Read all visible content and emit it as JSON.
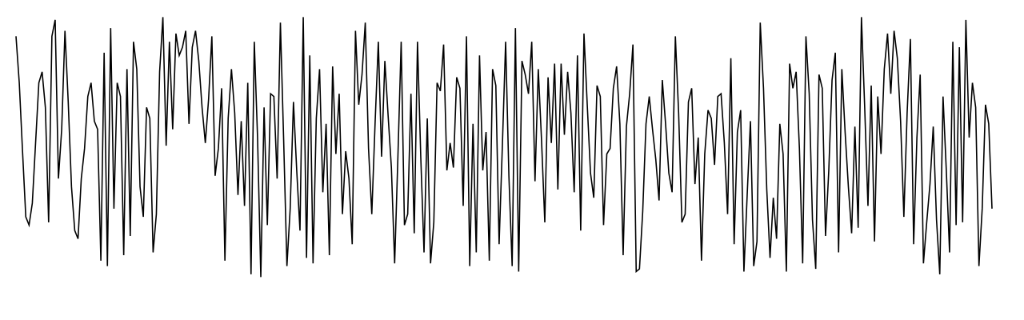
{
  "chart_data": {
    "type": "line",
    "title": "",
    "xlabel": "",
    "ylabel": "",
    "grid": false,
    "legend": "none",
    "axes_visible": false,
    "xlim": [
      0,
      299
    ],
    "ylim": [
      0,
      1
    ],
    "series": [
      {
        "color": "#000000",
        "values": [
          0.92,
          0.75,
          0.5,
          0.26,
          0.23,
          0.31,
          0.53,
          0.75,
          0.79,
          0.66,
          0.24,
          0.92,
          0.98,
          0.4,
          0.58,
          0.94,
          0.68,
          0.37,
          0.21,
          0.18,
          0.4,
          0.51,
          0.7,
          0.75,
          0.61,
          0.58,
          0.1,
          0.86,
          0.08,
          0.95,
          0.29,
          0.75,
          0.7,
          0.12,
          0.8,
          0.19,
          0.9,
          0.8,
          0.37,
          0.26,
          0.66,
          0.62,
          0.13,
          0.27,
          0.79,
          0.99,
          0.52,
          0.9,
          0.58,
          0.93,
          0.85,
          0.88,
          0.94,
          0.6,
          0.88,
          0.94,
          0.83,
          0.66,
          0.53,
          0.69,
          0.92,
          0.41,
          0.51,
          0.73,
          0.1,
          0.62,
          0.8,
          0.64,
          0.34,
          0.61,
          0.3,
          0.75,
          0.05,
          0.9,
          0.55,
          0.04,
          0.66,
          0.23,
          0.71,
          0.7,
          0.4,
          0.97,
          0.54,
          0.08,
          0.29,
          0.68,
          0.43,
          0.21,
          0.99,
          0.11,
          0.85,
          0.09,
          0.62,
          0.8,
          0.35,
          0.6,
          0.12,
          0.81,
          0.49,
          0.71,
          0.27,
          0.5,
          0.4,
          0.16,
          0.94,
          0.67,
          0.78,
          0.97,
          0.51,
          0.27,
          0.6,
          0.9,
          0.48,
          0.83,
          0.63,
          0.44,
          0.09,
          0.48,
          0.9,
          0.23,
          0.27,
          0.71,
          0.2,
          0.9,
          0.48,
          0.13,
          0.62,
          0.09,
          0.24,
          0.75,
          0.72,
          0.89,
          0.43,
          0.53,
          0.44,
          0.77,
          0.73,
          0.3,
          0.92,
          0.08,
          0.6,
          0.13,
          0.85,
          0.43,
          0.57,
          0.1,
          0.8,
          0.74,
          0.16,
          0.52,
          0.9,
          0.41,
          0.08,
          0.95,
          0.06,
          0.83,
          0.78,
          0.71,
          0.9,
          0.39,
          0.8,
          0.54,
          0.24,
          0.77,
          0.53,
          0.82,
          0.36,
          0.82,
          0.56,
          0.79,
          0.64,
          0.35,
          0.85,
          0.21,
          0.93,
          0.67,
          0.42,
          0.33,
          0.74,
          0.7,
          0.23,
          0.49,
          0.51,
          0.73,
          0.81,
          0.6,
          0.12,
          0.59,
          0.71,
          0.89,
          0.06,
          0.07,
          0.28,
          0.6,
          0.7,
          0.58,
          0.47,
          0.32,
          0.76,
          0.6,
          0.42,
          0.35,
          0.92,
          0.64,
          0.24,
          0.27,
          0.68,
          0.73,
          0.38,
          0.55,
          0.1,
          0.49,
          0.65,
          0.62,
          0.45,
          0.7,
          0.71,
          0.53,
          0.27,
          0.84,
          0.16,
          0.57,
          0.65,
          0.06,
          0.34,
          0.61,
          0.08,
          0.17,
          0.97,
          0.73,
          0.36,
          0.11,
          0.33,
          0.18,
          0.6,
          0.49,
          0.06,
          0.82,
          0.73,
          0.79,
          0.51,
          0.09,
          0.92,
          0.71,
          0.25,
          0.07,
          0.78,
          0.73,
          0.19,
          0.43,
          0.76,
          0.86,
          0.13,
          0.8,
          0.57,
          0.37,
          0.2,
          0.59,
          0.22,
          0.99,
          0.66,
          0.3,
          0.74,
          0.17,
          0.7,
          0.49,
          0.8,
          0.93,
          0.71,
          0.94,
          0.84,
          0.61,
          0.26,
          0.64,
          0.91,
          0.16,
          0.55,
          0.78,
          0.09,
          0.24,
          0.38,
          0.59,
          0.25,
          0.05,
          0.7,
          0.43,
          0.13,
          0.9,
          0.23,
          0.88,
          0.24,
          0.98,
          0.55,
          0.75,
          0.66,
          0.08,
          0.29,
          0.67,
          0.6,
          0.29
        ]
      }
    ]
  }
}
